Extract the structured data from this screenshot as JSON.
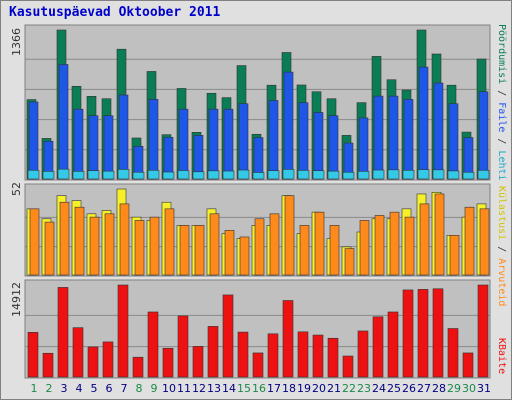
{
  "title": "Kasutuspäevad Oktoober 2011",
  "panels": {
    "top_max": "1366",
    "mid_max": "52",
    "bottom_max": "14912"
  },
  "legend": {
    "top": [
      {
        "label": "Pöördumisi",
        "color": "#0b7d55"
      },
      {
        "label": "Faile",
        "color": "#1e56e8"
      },
      {
        "label": "Lehti",
        "color": "#34c9e6"
      }
    ],
    "mid": [
      {
        "label": "Külastusi",
        "color": "#f5f02a"
      },
      {
        "label": "Arvuteid",
        "color": "#ff8a1c"
      }
    ],
    "bottom": [
      {
        "label": "KBaite",
        "color": "#ee1111"
      }
    ]
  },
  "colors": {
    "weekend_day": "#1a8a4a",
    "weekday": "#000080",
    "panel_bg": "#c0c0c0",
    "frame_bg": "#e0e0e0"
  },
  "chart_data": {
    "type": "bar",
    "x": [
      1,
      2,
      3,
      4,
      5,
      6,
      7,
      8,
      9,
      10,
      11,
      12,
      13,
      14,
      15,
      16,
      17,
      18,
      19,
      20,
      21,
      22,
      23,
      24,
      25,
      26,
      27,
      28,
      29,
      30,
      31
    ],
    "weekend_days": [
      1,
      2,
      8,
      9,
      15,
      16,
      22,
      23,
      29,
      30
    ],
    "panels": [
      {
        "name": "top",
        "ylim": [
          0,
          1366
        ],
        "series": [
          {
            "name": "Pöördumisi",
            "color": "#0b7d55",
            "values": [
              728,
              372,
              1366,
              850,
              758,
              736,
              1190,
              376,
              986,
              406,
              830,
              428,
              786,
              746,
              1040,
              410,
              860,
              1160,
              862,
              800,
              736,
              400,
              700,
              1124,
              910,
              816,
              1366,
              1146,
              860,
              430,
              1100
            ]
          },
          {
            "name": "Faile",
            "color": "#1e56e8",
            "values": [
              706,
              346,
              1050,
              640,
              580,
              580,
              770,
              300,
              730,
              382,
              640,
              400,
              640,
              640,
              690,
              380,
              720,
              980,
              700,
              610,
              580,
              330,
              560,
              760,
              760,
              730,
              1026,
              880,
              690,
              380,
              800
            ]
          },
          {
            "name": "Lehti",
            "color": "#34c9e6",
            "values": [
              80,
              70,
              90,
              70,
              76,
              72,
              88,
              62,
              80,
              64,
              78,
              66,
              75,
              73,
              82,
              60,
              76,
              88,
              79,
              76,
              72,
              62,
              70,
              82,
              84,
              80,
              86,
              84,
              74,
              62,
              80
            ]
          }
        ]
      },
      {
        "name": "mid",
        "ylim": [
          0,
          52
        ],
        "series": [
          {
            "name": "Külastusi",
            "color": "#f5f02a",
            "values": [
              40,
              34,
              48,
              45,
              37,
              39,
              52,
              35,
              33,
              44,
              30,
              30,
              40,
              25,
              22,
              30,
              30,
              48,
              25,
              38,
              22,
              17,
              26,
              34,
              34,
              40,
              49,
              50,
              24,
              35,
              43
            ]
          },
          {
            "name": "Arvuteid",
            "color": "#ff8a1c",
            "values": [
              40,
              32,
              44,
              41,
              35,
              37,
              43,
              33,
              35,
              40,
              30,
              30,
              37,
              27,
              23,
              34,
              37,
              48,
              30,
              38,
              30,
              16,
              33,
              36,
              38,
              35,
              43,
              49,
              24,
              41,
              40
            ]
          }
        ]
      },
      {
        "name": "bottom",
        "ylim": [
          0,
          14912
        ],
        "series": [
          {
            "name": "KBaite",
            "color": "#ee1111",
            "values": [
              7240,
              3852,
              14520,
              8000,
              4872,
              5688,
              14912,
              3208,
              10540,
              4660,
              9900,
              4960,
              8200,
              13300,
              7280,
              3900,
              7000,
              12400,
              7320,
              6800,
              6280,
              3400,
              7460,
              9760,
              10540,
              14112,
              14200,
              14300,
              7860,
              3900,
              14912
            ]
          }
        ]
      }
    ]
  }
}
